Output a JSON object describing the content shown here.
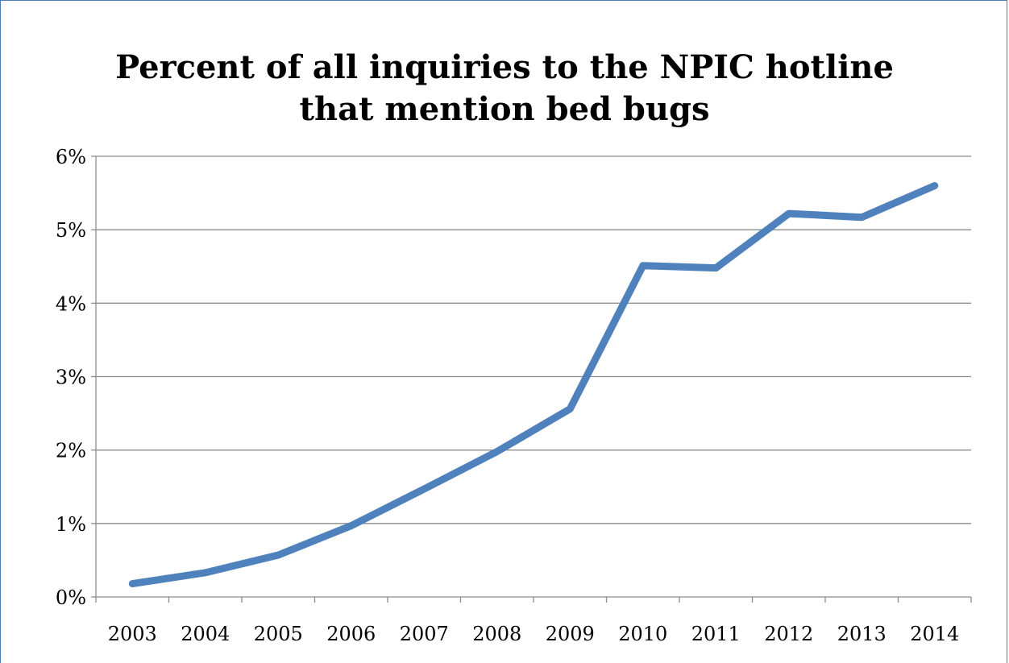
{
  "chart_data": {
    "type": "line",
    "title_lines": [
      "Percent of all inquiries to the NPIC hotline",
      "that mention bed bugs"
    ],
    "xlabel": "",
    "ylabel": "",
    "categories": [
      "2003",
      "2004",
      "2005",
      "2006",
      "2007",
      "2008",
      "2009",
      "2010",
      "2011",
      "2012",
      "2013",
      "2014"
    ],
    "series": [
      {
        "values": [
          0.18,
          0.33,
          0.57,
          0.97,
          1.47,
          1.98,
          2.56,
          4.51,
          4.48,
          5.22,
          5.17,
          5.6
        ],
        "color": "#4f81bd"
      }
    ],
    "ylim": [
      0,
      6
    ],
    "yticks": [
      0,
      1,
      2,
      3,
      4,
      5,
      6
    ],
    "ytick_labels": [
      "0%",
      "1%",
      "2%",
      "3%",
      "4%",
      "5%",
      "6%"
    ],
    "grid": true,
    "legend": "none"
  }
}
